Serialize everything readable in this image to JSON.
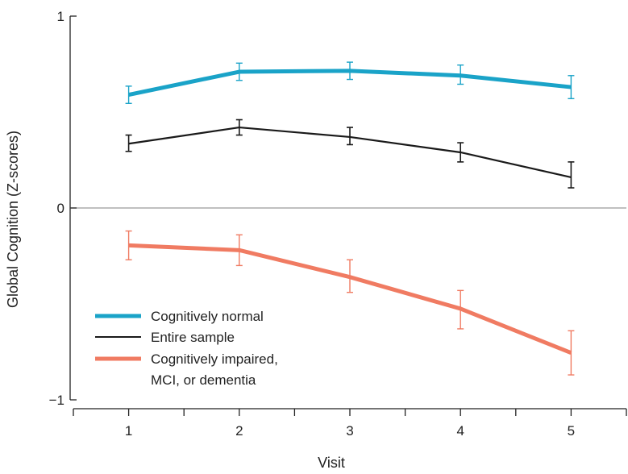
{
  "chart_data": {
    "type": "line",
    "xlabel": "Visit",
    "ylabel": "Global Cognition (Z-scores)",
    "x": [
      1,
      2,
      3,
      4,
      5
    ],
    "xlim": [
      0.5,
      5.5
    ],
    "ylim": [
      -1,
      1
    ],
    "yticks": [
      {
        "value": 1,
        "label": "1"
      },
      {
        "value": 0,
        "label": "0"
      },
      {
        "value": -1,
        "label": "−1"
      }
    ],
    "xticks": [
      {
        "value": 1,
        "label": "1"
      },
      {
        "value": 2,
        "label": "2"
      },
      {
        "value": 3,
        "label": "3"
      },
      {
        "value": 4,
        "label": "4"
      },
      {
        "value": 5,
        "label": "5"
      }
    ],
    "minor_xticks": [
      0.5,
      1.5,
      2.5,
      3.5,
      4.5,
      5.5
    ],
    "reference_line_y": 0,
    "legend_position": "bottom-left",
    "series": [
      {
        "name": "Cognitively normal",
        "color": "#1aa3c8",
        "thick": true,
        "values": [
          0.59,
          0.71,
          0.715,
          0.69,
          0.63
        ],
        "err_low": [
          0.545,
          0.665,
          0.67,
          0.645,
          0.57
        ],
        "err_high": [
          0.635,
          0.755,
          0.76,
          0.745,
          0.69
        ]
      },
      {
        "name": "Entire sample",
        "color": "#1a1a1a",
        "thick": false,
        "values": [
          0.335,
          0.42,
          0.37,
          0.29,
          0.16
        ],
        "err_low": [
          0.295,
          0.38,
          0.33,
          0.24,
          0.105
        ],
        "err_high": [
          0.38,
          0.46,
          0.42,
          0.34,
          0.24
        ]
      },
      {
        "name": "Cognitively impaired,\nMCI, or dementia",
        "color": "#f07b62",
        "thick": true,
        "values": [
          -0.195,
          -0.22,
          -0.36,
          -0.525,
          -0.755
        ],
        "err_low": [
          -0.27,
          -0.3,
          -0.44,
          -0.63,
          -0.87
        ],
        "err_high": [
          -0.12,
          -0.14,
          -0.27,
          -0.43,
          -0.64
        ]
      }
    ]
  }
}
